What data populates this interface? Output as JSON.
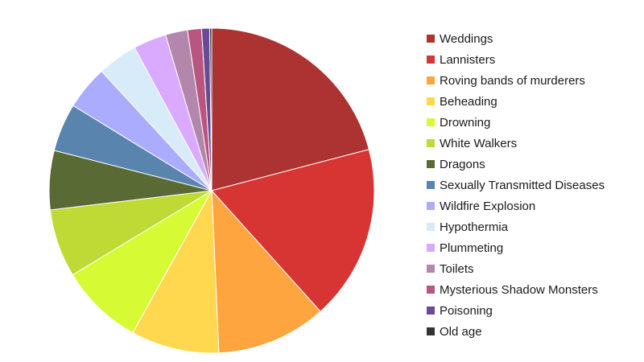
{
  "chart_data": {
    "type": "pie",
    "title": "",
    "categories": [
      "Weddings",
      "Lannisters",
      "Roving bands of murderers",
      "Beheading",
      "Drowning",
      "White Walkers",
      "Dragons",
      "Sexually Transmitted Diseases",
      "Wildfire Explosion",
      "Hypothermia",
      "Plummeting",
      "Toilets",
      "Mysterious Shadow Monsters",
      "Poisoning",
      "Old age"
    ],
    "values": [
      21.0,
      17.5,
      11.0,
      8.8,
      8.3,
      6.8,
      5.9,
      4.8,
      4.4,
      4.0,
      3.3,
      2.2,
      1.4,
      0.8,
      0.2
    ],
    "colors": [
      "#ad3232",
      "#d73434",
      "#ffa53f",
      "#ffd84f",
      "#d6fa33",
      "#bfd935",
      "#5a6a35",
      "#5884ad",
      "#acacff",
      "#d8ebf8",
      "#d9aaff",
      "#b386ac",
      "#b8567f",
      "#6a4a96",
      "#333333"
    ],
    "start_angle_deg": 0,
    "direction": "clockwise",
    "legend": {
      "position": "right"
    }
  }
}
